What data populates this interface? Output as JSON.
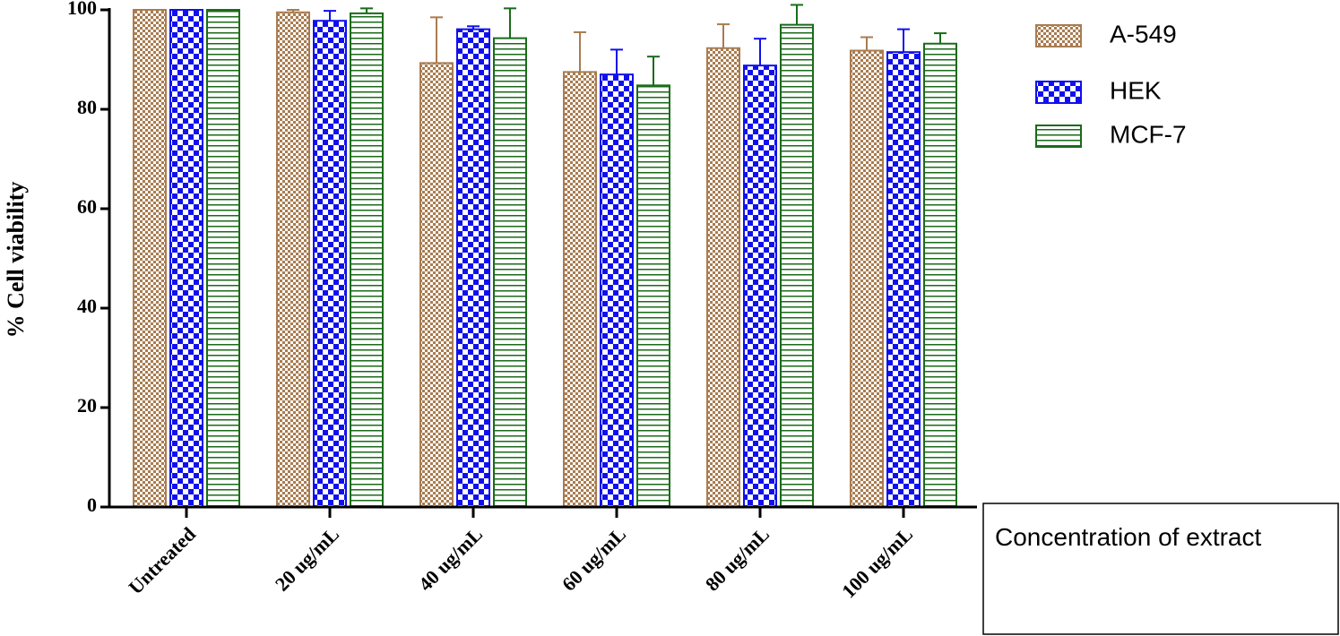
{
  "chart_data": {
    "type": "bar",
    "y_label": "% Cell viability",
    "x_label": "Concentration of extract",
    "categories": [
      "Untreated",
      "20 ug/mL",
      "40 ug/mL",
      "60 ug/mL",
      "80 ug/mL",
      "100 ug/mL"
    ],
    "series": [
      {
        "name": "A-549",
        "color": "#a97c50",
        "pattern": "fine-check",
        "values": [
          100,
          99.5,
          89.3,
          87.5,
          92.3,
          91.8
        ],
        "errors": [
          0,
          0.5,
          9.2,
          8,
          4.8,
          2.7
        ]
      },
      {
        "name": "HEK",
        "color": "#1010ee",
        "pattern": "check",
        "values": [
          100,
          97.8,
          96.1,
          87,
          88.8,
          91.5
        ],
        "errors": [
          0,
          2,
          0.6,
          5,
          5.4,
          4.6
        ]
      },
      {
        "name": "MCF-7",
        "color": "#1a6b1a",
        "pattern": "hstripe",
        "values": [
          100,
          99.3,
          94.3,
          84.8,
          97,
          93.2
        ],
        "errors": [
          0,
          1,
          6,
          5.8,
          4,
          2.1
        ]
      }
    ],
    "ylim": [
      0,
      100
    ],
    "yticks": [
      0,
      20,
      40,
      60,
      80,
      100
    ]
  }
}
